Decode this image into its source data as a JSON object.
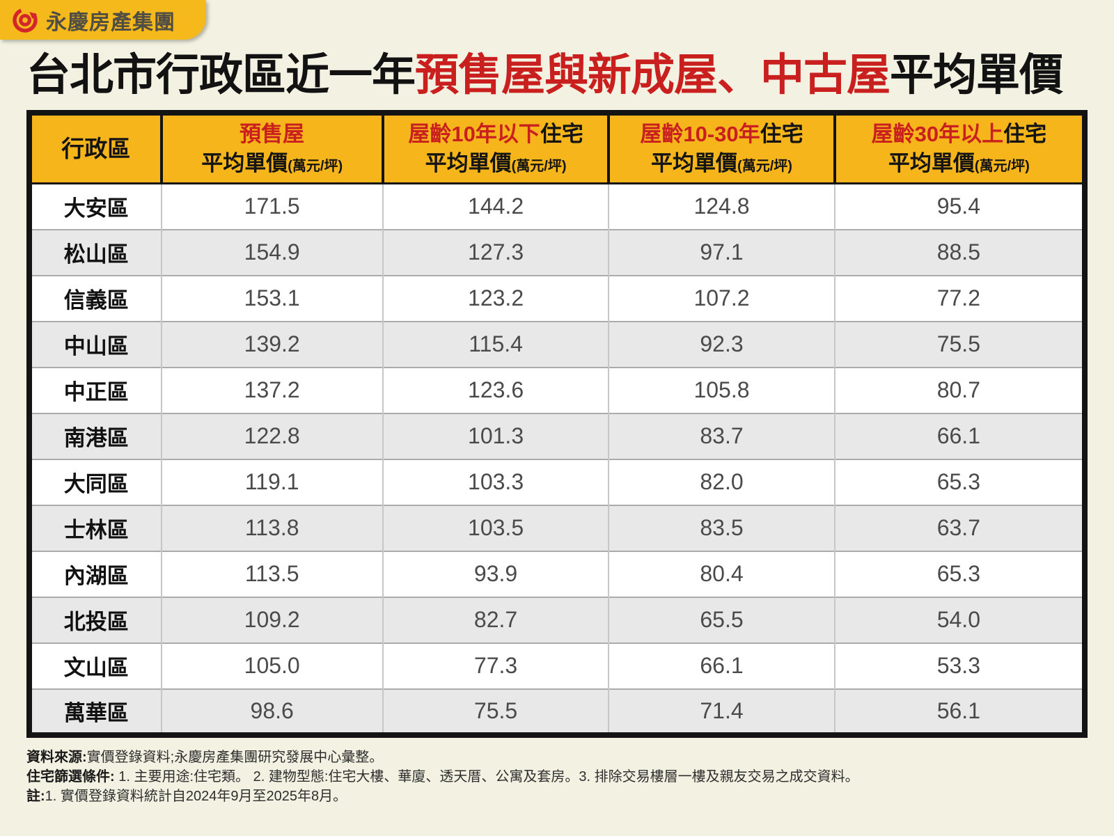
{
  "colors": {
    "background": "#F2F1E2",
    "brand_yellow": "#F5B51B",
    "accent_red": "#C9201F",
    "logo_red": "#D3262B",
    "row_alt_gray": "#E8E8E8",
    "value_text": "#4A4A4A",
    "ink": "#141414"
  },
  "logo": {
    "text": "永慶房產集團"
  },
  "title": {
    "black_prefix": "台北市行政區近一年",
    "red_middle": "預售屋與新成屋、中古屋",
    "black_suffix": "平均單價"
  },
  "table": {
    "district_header": "行政區",
    "columns": [
      {
        "red": "預售屋",
        "black": "",
        "line2": "平均單價",
        "unit": "(萬元/坪)"
      },
      {
        "red": "屋齡10年以下",
        "black": "住宅",
        "line2": "平均單價",
        "unit": "(萬元/坪)"
      },
      {
        "red": "屋齡10-30年",
        "black": "住宅",
        "line2": "平均單價",
        "unit": "(萬元/坪)"
      },
      {
        "red": "屋齡30年以上",
        "black": "住宅",
        "line2": "平均單價",
        "unit": "(萬元/坪)"
      }
    ],
    "rows": [
      {
        "district": "大安區",
        "presale": "171.5",
        "age_under10": "144.2",
        "age_10_30": "124.8",
        "age_over30": "95.4"
      },
      {
        "district": "松山區",
        "presale": "154.9",
        "age_under10": "127.3",
        "age_10_30": "97.1",
        "age_over30": "88.5"
      },
      {
        "district": "信義區",
        "presale": "153.1",
        "age_under10": "123.2",
        "age_10_30": "107.2",
        "age_over30": "77.2"
      },
      {
        "district": "中山區",
        "presale": "139.2",
        "age_under10": "115.4",
        "age_10_30": "92.3",
        "age_over30": "75.5"
      },
      {
        "district": "中正區",
        "presale": "137.2",
        "age_under10": "123.6",
        "age_10_30": "105.8",
        "age_over30": "80.7"
      },
      {
        "district": "南港區",
        "presale": "122.8",
        "age_under10": "101.3",
        "age_10_30": "83.7",
        "age_over30": "66.1"
      },
      {
        "district": "大同區",
        "presale": "119.1",
        "age_under10": "103.3",
        "age_10_30": "82.0",
        "age_over30": "65.3"
      },
      {
        "district": "士林區",
        "presale": "113.8",
        "age_under10": "103.5",
        "age_10_30": "83.5",
        "age_over30": "63.7"
      },
      {
        "district": "內湖區",
        "presale": "113.5",
        "age_under10": "93.9",
        "age_10_30": "80.4",
        "age_over30": "65.3"
      },
      {
        "district": "北投區",
        "presale": "109.2",
        "age_under10": "82.7",
        "age_10_30": "65.5",
        "age_over30": "54.0"
      },
      {
        "district": "文山區",
        "presale": "105.0",
        "age_under10": "77.3",
        "age_10_30": "66.1",
        "age_over30": "53.3"
      },
      {
        "district": "萬華區",
        "presale": "98.6",
        "age_under10": "75.5",
        "age_10_30": "71.4",
        "age_over30": "56.1"
      }
    ]
  },
  "footnotes": [
    {
      "label": "資料來源:",
      "text": "實價登錄資料;永慶房產集團研究發展中心彙整。"
    },
    {
      "label": "住宅篩選條件:",
      "text": " 1. 主要用途:住宅類。 2. 建物型態:住宅大樓、華廈、透天厝、公寓及套房。3. 排除交易樓層一樓及親友交易之成交資料。"
    },
    {
      "label": "註:",
      "text": "1. 實價登錄資料統計自2024年9月至2025年8月。"
    }
  ],
  "chart_data": {
    "type": "table",
    "title": "台北市行政區近一年預售屋與新成屋、中古屋平均單價",
    "unit": "萬元/坪",
    "categories": [
      "大安區",
      "松山區",
      "信義區",
      "中山區",
      "中正區",
      "南港區",
      "大同區",
      "士林區",
      "內湖區",
      "北投區",
      "文山區",
      "萬華區"
    ],
    "series": [
      {
        "name": "預售屋平均單價",
        "values": [
          171.5,
          154.9,
          153.1,
          139.2,
          137.2,
          122.8,
          119.1,
          113.8,
          113.5,
          109.2,
          105.0,
          98.6
        ]
      },
      {
        "name": "屋齡10年以下住宅平均單價",
        "values": [
          144.2,
          127.3,
          123.2,
          115.4,
          123.6,
          101.3,
          103.3,
          103.5,
          93.9,
          82.7,
          77.3,
          75.5
        ]
      },
      {
        "name": "屋齡10-30年住宅平均單價",
        "values": [
          124.8,
          97.1,
          107.2,
          92.3,
          105.8,
          83.7,
          82.0,
          83.5,
          80.4,
          65.5,
          66.1,
          71.4
        ]
      },
      {
        "name": "屋齡30年以上住宅平均單價",
        "values": [
          95.4,
          88.5,
          77.2,
          75.5,
          80.7,
          66.1,
          65.3,
          63.7,
          65.3,
          54.0,
          53.3,
          56.1
        ]
      }
    ]
  }
}
